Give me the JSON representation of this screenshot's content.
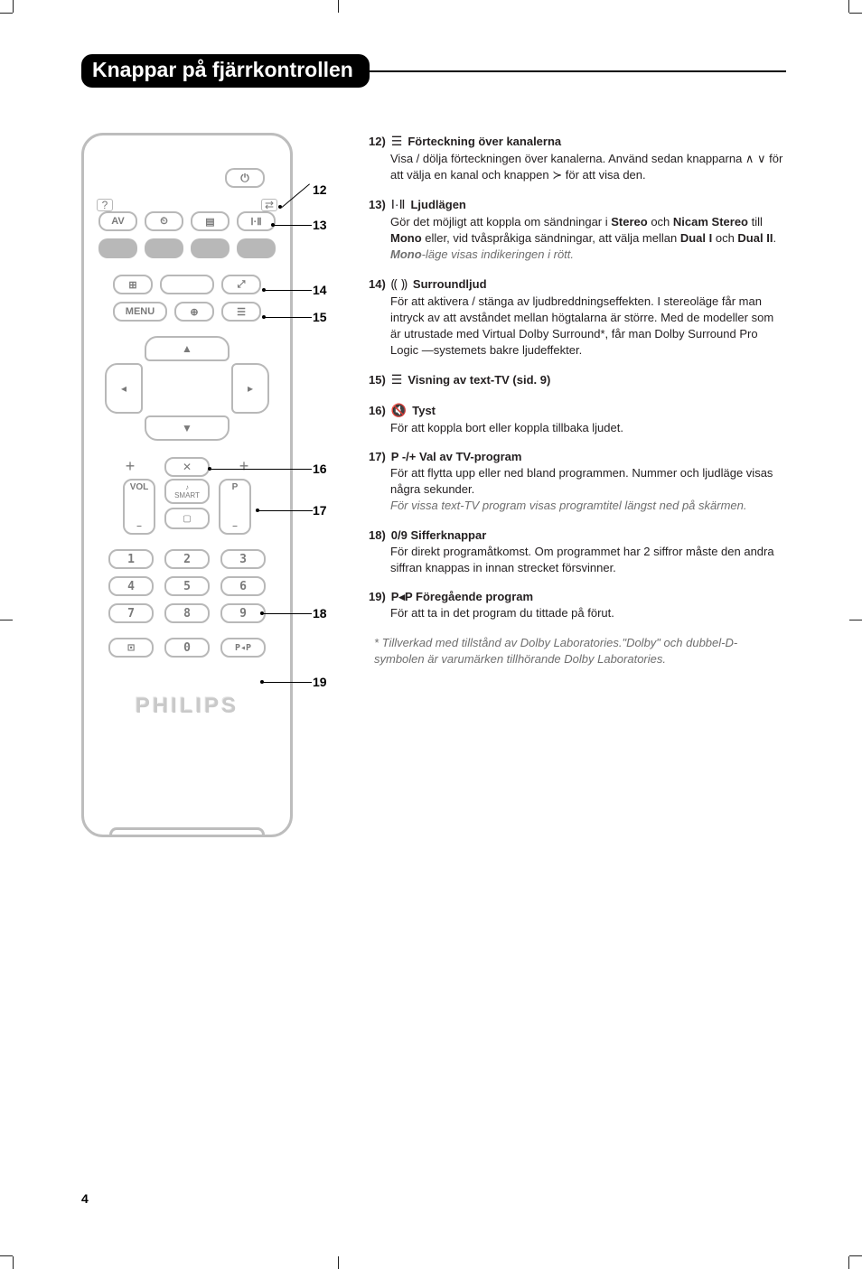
{
  "header": {
    "title": "Knappar på fjärrkontrollen"
  },
  "remote": {
    "power": "⏻",
    "corner_left": "?",
    "corner_right": "⇄",
    "row1": [
      "AV",
      "⏲",
      "▤",
      "Ⅰ·Ⅱ"
    ],
    "row3_left": "⊞",
    "row3_right": "⤢",
    "row4": [
      "MENU",
      "⊕",
      "☰"
    ],
    "dpad": {
      "up": "▲",
      "down": "▼",
      "left": "◂",
      "right": "▸"
    },
    "mute": "✕",
    "plus": "+",
    "minus": "–",
    "vol_label": "VOL",
    "p_label": "P",
    "smart_top": "♪",
    "smart_label": "SMART",
    "smart_bot": "▢",
    "nums": [
      "1",
      "2",
      "3",
      "4",
      "5",
      "6",
      "7",
      "8",
      "9"
    ],
    "bottom": [
      "⊡",
      "0",
      "P◂P"
    ],
    "brand": "PHILIPS"
  },
  "leaders": {
    "n12": "12",
    "n13": "13",
    "n14": "14",
    "n15": "15",
    "n16": "16",
    "n17": "17",
    "n18": "18",
    "n19": "19"
  },
  "items": [
    {
      "num": "12)",
      "icon": "☰",
      "title": "Förteckning över kanalerna",
      "body": "Visa / dölja förteckningen över kanalerna. Använd sedan knapparna ∧ ∨ för att välja en kanal och knappen ≻ för att visa den."
    },
    {
      "num": "13)",
      "icon": "Ⅰ·Ⅱ",
      "title": "Ljudlägen",
      "body": "Gör det möjligt att koppla om sändningar i <b>Stereo</b> och <b>Nicam Stereo</b> till <b>Mono</b> eller, vid tvåspråkiga sändningar, att välja mellan <b>Dual I</b> och <b>Dual II</b>.",
      "note": "<b>Mono</b>-läge visas indikeringen i rött."
    },
    {
      "num": "14)",
      "icon": "⸨ ⸩",
      "title": "Surroundljud",
      "body": "För att aktivera / stänga av ljudbreddningseffekten. I stereoläge får man intryck av att avståndet mellan högtalarna är större. Med de modeller som är utrustade med Virtual Dolby Surround*, får man Dolby Surround Pro Logic —systemets bakre ljudeffekter."
    },
    {
      "num": "15)",
      "icon": "☰",
      "title": "Visning av text-TV (sid. 9)",
      "body": ""
    },
    {
      "num": "16)",
      "icon": "🔇",
      "title": "Tyst",
      "body": "För att koppla bort eller koppla tillbaka ljudet."
    },
    {
      "num": "17)",
      "icon": "",
      "title": "P -/+  Val av TV-program",
      "body": "För att flytta upp eller ned bland programmen. Nummer och ljudläge visas några sekunder.",
      "note": "För vissa text-TV program visas programtitel längst ned på skärmen."
    },
    {
      "num": "18)",
      "icon": "",
      "title": "0/9 Sifferknappar",
      "body": "För direkt programåtkomst. Om programmet har 2 siffror måste den andra siffran knappas in innan strecket försvinner."
    },
    {
      "num": "19)",
      "icon": "",
      "title": "P◂P  Föregående program",
      "body": "För att ta in det program du tittade på förut."
    }
  ],
  "footnote": "* Tillverkad med tillstånd av Dolby Laboratories.\"Dolby\" och dubbel-D-symbolen är varumärken tillhörande Dolby Laboratories.",
  "page_number": "4"
}
